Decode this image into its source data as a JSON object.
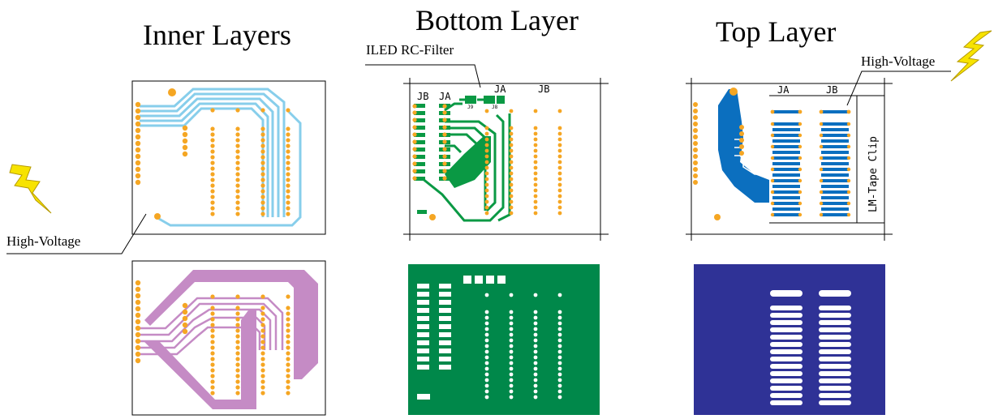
{
  "titles": {
    "inner": "Inner Layers",
    "bottom": "Bottom Layer",
    "top": "Top Layer"
  },
  "annotations": {
    "high_voltage_left": "High-Voltage",
    "high_voltage_top": "High-Voltage",
    "iled_filter": "ILED RC-Filter",
    "lm_tape_clip": "LM-Tape Clip"
  },
  "connectors": {
    "jb": "JB",
    "ja": "JA",
    "j9": "J9",
    "j8": "J8"
  },
  "colors": {
    "pad": "#f5a623",
    "inner_trace": "#87ceeb",
    "inner_plane": "#c58bc5",
    "bottom_trace": "#0a9944",
    "bottom_mask": "#00884a",
    "top_trace": "#0b6fbf",
    "top_mask": "#2f3296",
    "lightning": "#f7e300"
  }
}
